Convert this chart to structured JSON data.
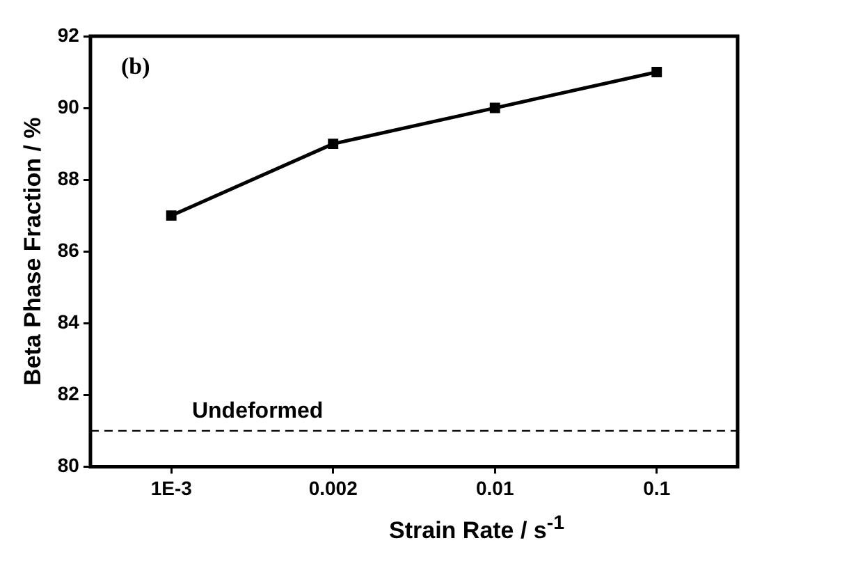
{
  "chart_data": {
    "type": "line",
    "xlabel": "Strain Rate / s$^{-1}$",
    "ylabel": "Beta Phase Fraction / %",
    "categories": [
      "1E-3",
      "0.002",
      "0.01",
      "0.1"
    ],
    "series": [
      {
        "color": "#000000",
        "values": [
          87,
          89,
          90,
          91
        ]
      }
    ],
    "ylim": [
      80,
      92
    ],
    "yticks": [
      80,
      82,
      84,
      86,
      88,
      90,
      92
    ],
    "grid": false,
    "legend": false,
    "marker": "square",
    "line_style": "solid",
    "ref_lines": [
      {
        "axis": "y",
        "value": 81,
        "label": "Undeformed",
        "color": "#000000",
        "line_style": "dashed"
      }
    ],
    "annotations": [
      "(b)"
    ]
  }
}
